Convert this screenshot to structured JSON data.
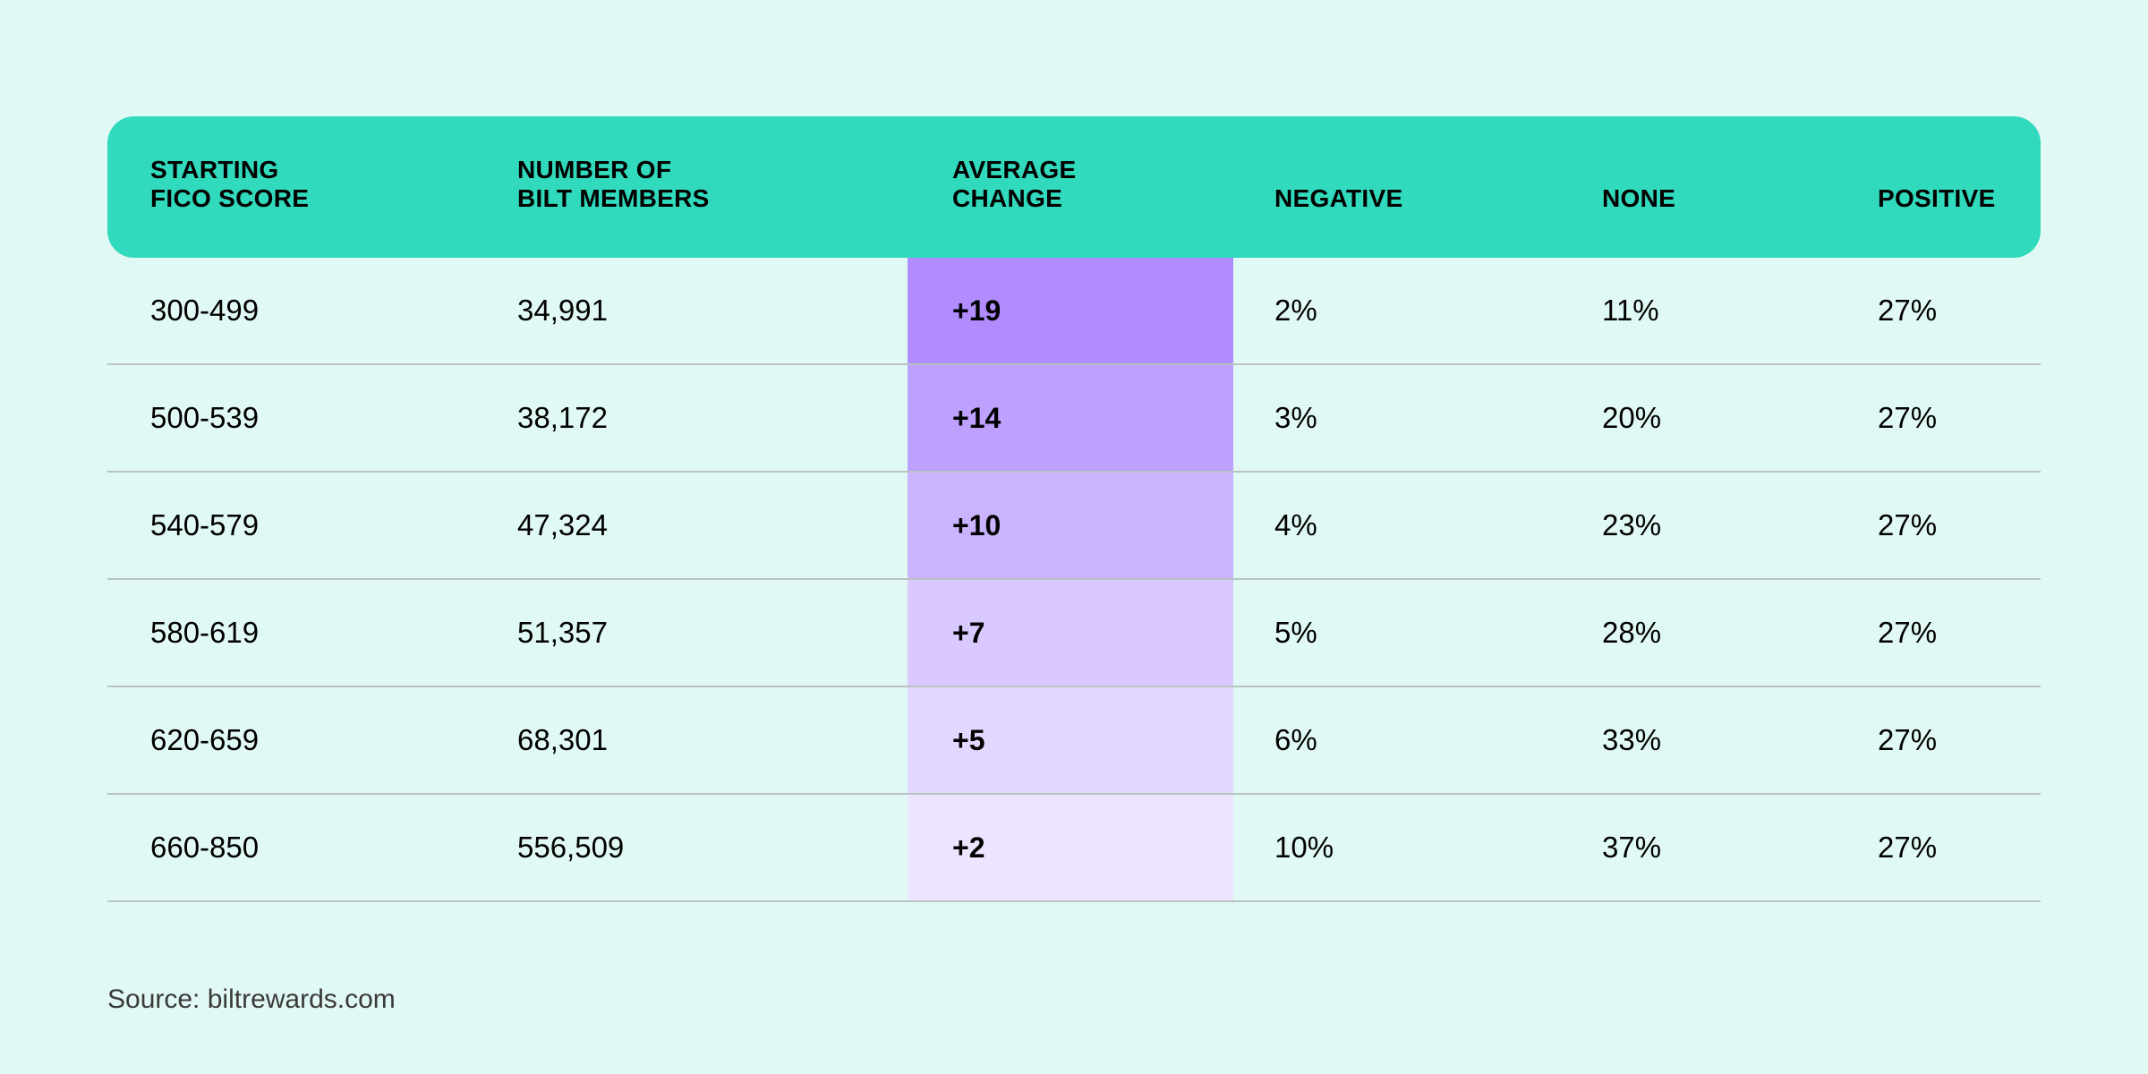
{
  "colors": {
    "background": "#e1f9f4",
    "header": "#31dabd",
    "avg_shades": [
      "#b18cff",
      "#bea0ff",
      "#cab4ff",
      "#dac9ff",
      "#e3d6ff",
      "#ede4ff"
    ]
  },
  "chart_data": {
    "type": "table",
    "columns": [
      "STARTING\nFICO SCORE",
      "NUMBER OF\nBILT MEMBERS",
      "AVERAGE\nCHANGE",
      "NEGATIVE",
      "NONE",
      "POSITIVE"
    ],
    "rows": [
      [
        "300-499",
        "34,991",
        "+19",
        "2%",
        "11%",
        "27%"
      ],
      [
        "500-539",
        "38,172",
        "+14",
        "3%",
        "20%",
        "27%"
      ],
      [
        "540-579",
        "47,324",
        "+10",
        "4%",
        "23%",
        "27%"
      ],
      [
        "580-619",
        "51,357",
        "+7",
        "5%",
        "28%",
        "27%"
      ],
      [
        "620-659",
        "68,301",
        "+5",
        "6%",
        "33%",
        "27%"
      ],
      [
        "660-850",
        "556,509",
        "+2",
        "10%",
        "37%",
        "27%"
      ]
    ],
    "source": "Source: biltrewards.com"
  }
}
